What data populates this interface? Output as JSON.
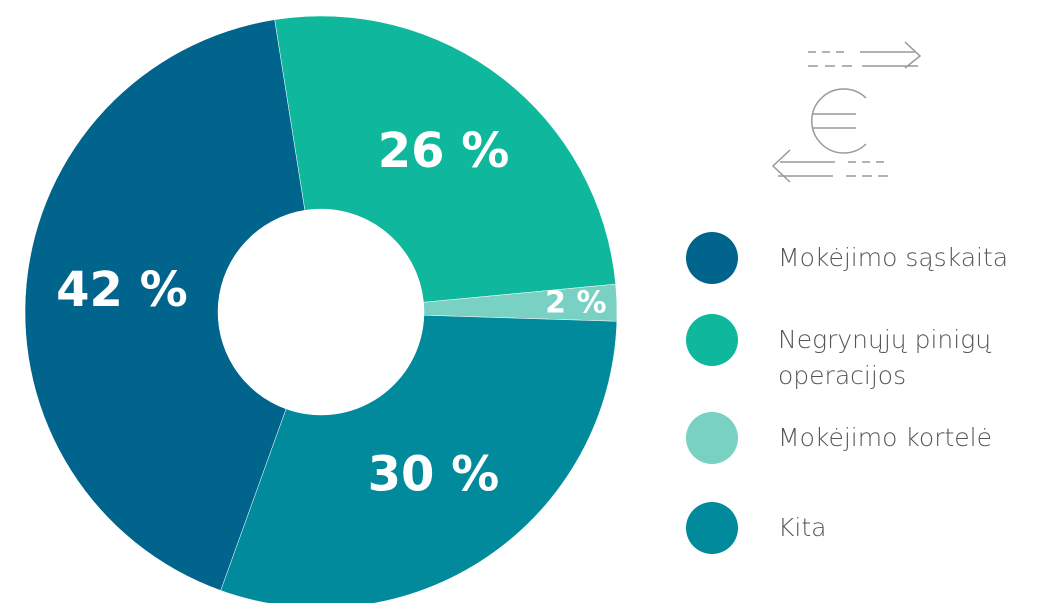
{
  "chart_data": {
    "type": "donut",
    "categories": [
      "Mokėjimo sąskaita",
      "Negrynųjų pinigų operacijos",
      "Mokėjimo kortelė",
      "Kita"
    ],
    "values": [
      42,
      26,
      2,
      30
    ],
    "value_labels": [
      "42 %",
      "26 %",
      "2 %",
      "30 %"
    ],
    "colors": [
      "#00648c",
      "#0fb79d",
      "#79d1c3",
      "#008a9c"
    ],
    "legend": "right"
  }
}
